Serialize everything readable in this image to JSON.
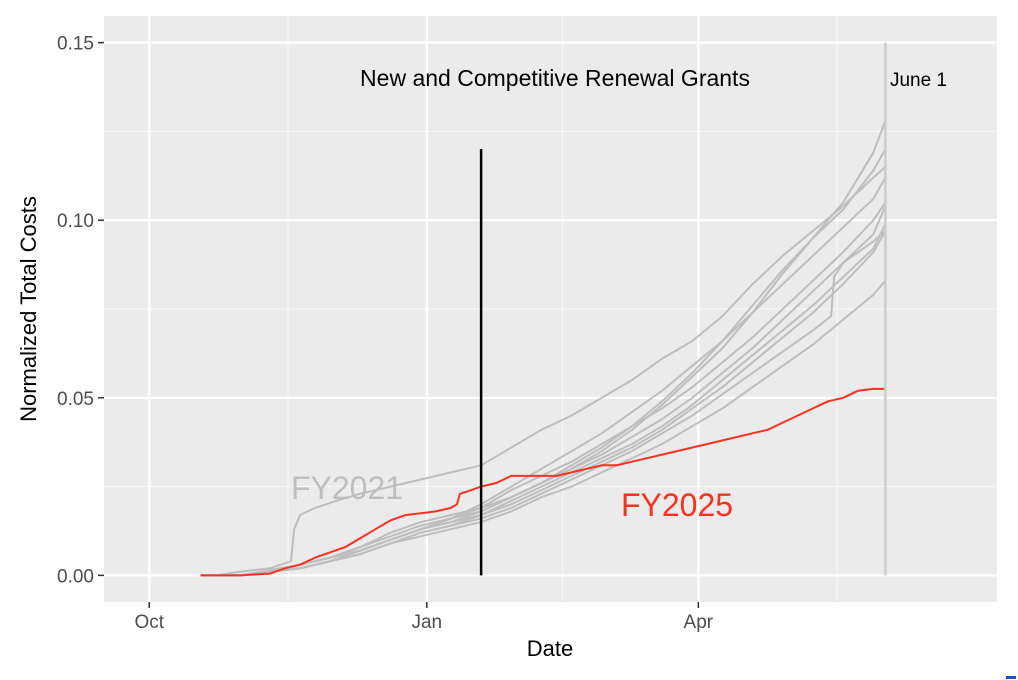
{
  "chart_data": {
    "type": "line",
    "title": "",
    "xlabel": "Date",
    "ylabel": "Normalized Total Costs",
    "x_unit": "day of fiscal year (Oct 1 = 0)",
    "xlim": [
      -15,
      281
    ],
    "ylim": [
      -0.0075,
      0.1575
    ],
    "x_ticks": [
      {
        "label": "Oct",
        "value": 0
      },
      {
        "label": "Jan",
        "value": 92
      },
      {
        "label": "Apr",
        "value": 182
      }
    ],
    "x_minor_ticks": [
      46,
      137,
      228
    ],
    "y_ticks": [
      {
        "label": "0.00",
        "value": 0.0
      },
      {
        "label": "0.05",
        "value": 0.05
      },
      {
        "label": "0.10",
        "value": 0.1
      },
      {
        "label": "0.15",
        "value": 0.15
      }
    ],
    "y_minor_ticks": [
      0.025,
      0.075,
      0.125
    ],
    "grid": true,
    "background": "#ebebeb",
    "annotations": {
      "main_text": "New and Competitive Renewal Grants",
      "june_text": "June 1",
      "june_line_x": 244,
      "cutoff_line_x": 110,
      "cutoff_line_y_top": 0.12,
      "fy2021_label": "FY2021",
      "fy2025_label": "FY2025"
    },
    "colors": {
      "history": "#bebebe",
      "current": "#f8321e",
      "cutoff": "#000000",
      "june_line": "#cccccc"
    },
    "series": [
      {
        "name": "FY2021",
        "color": "#bebebe",
        "x": [
          22,
          30,
          40,
          47,
          48,
          50,
          55,
          62,
          70,
          80,
          90,
          100,
          110,
          120,
          130,
          140,
          150,
          160,
          170,
          180,
          190,
          200,
          210,
          220,
          230,
          240,
          244
        ],
        "y": [
          0.0,
          0.001,
          0.002,
          0.004,
          0.013,
          0.017,
          0.019,
          0.021,
          0.023,
          0.025,
          0.027,
          0.029,
          0.031,
          0.036,
          0.041,
          0.045,
          0.05,
          0.055,
          0.061,
          0.066,
          0.073,
          0.082,
          0.09,
          0.097,
          0.104,
          0.112,
          0.115
        ]
      },
      {
        "name": "",
        "color": "#bebebe",
        "x": [
          17,
          30,
          40,
          50,
          60,
          70,
          80,
          90,
          100,
          110,
          120,
          130,
          140,
          150,
          160,
          170,
          180,
          190,
          200,
          210,
          220,
          230,
          240,
          244
        ],
        "y": [
          0.0,
          0.0,
          0.0015,
          0.003,
          0.005,
          0.008,
          0.012,
          0.015,
          0.017,
          0.019,
          0.022,
          0.026,
          0.03,
          0.035,
          0.041,
          0.048,
          0.056,
          0.064,
          0.074,
          0.085,
          0.095,
          0.105,
          0.119,
          0.128
        ]
      },
      {
        "name": "",
        "color": "#bebebe",
        "x": [
          17,
          30,
          40,
          50,
          60,
          70,
          80,
          90,
          100,
          110,
          120,
          130,
          140,
          150,
          160,
          170,
          180,
          190,
          200,
          210,
          220,
          230,
          240,
          244
        ],
        "y": [
          0.0,
          0.0,
          0.001,
          0.003,
          0.005,
          0.008,
          0.011,
          0.014,
          0.016,
          0.018,
          0.022,
          0.026,
          0.031,
          0.036,
          0.042,
          0.049,
          0.057,
          0.066,
          0.076,
          0.086,
          0.095,
          0.103,
          0.114,
          0.12
        ]
      },
      {
        "name": "",
        "color": "#bebebe",
        "x": [
          17,
          30,
          40,
          50,
          60,
          70,
          80,
          90,
          100,
          110,
          120,
          130,
          140,
          150,
          160,
          170,
          180,
          190,
          200,
          210,
          220,
          230,
          240,
          244
        ],
        "y": [
          0.0,
          0.0,
          0.001,
          0.003,
          0.005,
          0.007,
          0.01,
          0.013,
          0.016,
          0.02,
          0.025,
          0.03,
          0.035,
          0.04,
          0.046,
          0.052,
          0.059,
          0.066,
          0.074,
          0.082,
          0.09,
          0.098,
          0.106,
          0.112
        ]
      },
      {
        "name": "",
        "color": "#bebebe",
        "x": [
          17,
          30,
          40,
          50,
          60,
          70,
          80,
          90,
          100,
          110,
          120,
          130,
          140,
          150,
          160,
          170,
          180,
          190,
          200,
          210,
          220,
          230,
          240,
          244
        ],
        "y": [
          0.0,
          0.0,
          0.001,
          0.003,
          0.005,
          0.007,
          0.01,
          0.013,
          0.016,
          0.019,
          0.024,
          0.028,
          0.032,
          0.037,
          0.042,
          0.047,
          0.053,
          0.06,
          0.067,
          0.075,
          0.083,
          0.091,
          0.1,
          0.105
        ]
      },
      {
        "name": "",
        "color": "#bebebe",
        "x": [
          17,
          30,
          40,
          50,
          60,
          70,
          80,
          90,
          100,
          110,
          120,
          130,
          140,
          150,
          160,
          170,
          180,
          190,
          200,
          210,
          220,
          230,
          240,
          244
        ],
        "y": [
          0.0,
          0.0,
          0.001,
          0.002,
          0.004,
          0.007,
          0.01,
          0.013,
          0.015,
          0.018,
          0.022,
          0.026,
          0.03,
          0.034,
          0.039,
          0.044,
          0.05,
          0.057,
          0.064,
          0.072,
          0.08,
          0.088,
          0.096,
          0.104
        ]
      },
      {
        "name": "",
        "color": "#bebebe",
        "x": [
          17,
          30,
          40,
          50,
          60,
          70,
          80,
          90,
          100,
          110,
          120,
          130,
          140,
          150,
          160,
          170,
          180,
          190,
          200,
          210,
          220,
          230,
          240,
          244
        ],
        "y": [
          0.0,
          0.0,
          0.001,
          0.002,
          0.004,
          0.007,
          0.01,
          0.013,
          0.015,
          0.017,
          0.021,
          0.025,
          0.029,
          0.033,
          0.037,
          0.042,
          0.048,
          0.055,
          0.062,
          0.069,
          0.076,
          0.084,
          0.092,
          0.099
        ]
      },
      {
        "name": "",
        "color": "#bebebe",
        "x": [
          17,
          30,
          40,
          50,
          60,
          70,
          80,
          90,
          100,
          110,
          120,
          130,
          140,
          150,
          160,
          170,
          180,
          190,
          200,
          210,
          220,
          230,
          240,
          244
        ],
        "y": [
          0.0,
          0.0,
          0.001,
          0.002,
          0.004,
          0.006,
          0.009,
          0.012,
          0.014,
          0.017,
          0.02,
          0.024,
          0.028,
          0.032,
          0.036,
          0.041,
          0.047,
          0.053,
          0.06,
          0.067,
          0.074,
          0.082,
          0.091,
          0.097
        ]
      },
      {
        "name": "",
        "color": "#bebebe",
        "x": [
          17,
          30,
          40,
          50,
          60,
          70,
          80,
          90,
          100,
          110,
          120,
          130,
          140,
          150,
          160,
          170,
          180,
          190,
          200,
          210,
          220,
          226,
          227,
          230,
          240,
          244
        ],
        "y": [
          0.0,
          0.0,
          0.001,
          0.002,
          0.004,
          0.006,
          0.009,
          0.012,
          0.014,
          0.016,
          0.019,
          0.023,
          0.027,
          0.031,
          0.035,
          0.04,
          0.045,
          0.051,
          0.057,
          0.063,
          0.069,
          0.073,
          0.084,
          0.088,
          0.094,
          0.097
        ]
      },
      {
        "name": "",
        "color": "#bebebe",
        "x": [
          17,
          30,
          40,
          50,
          60,
          70,
          80,
          90,
          100,
          110,
          120,
          130,
          140,
          150,
          160,
          170,
          180,
          190,
          200,
          210,
          220,
          230,
          240,
          244
        ],
        "y": [
          0.0,
          0.0,
          0.001,
          0.002,
          0.004,
          0.006,
          0.009,
          0.011,
          0.013,
          0.015,
          0.018,
          0.022,
          0.025,
          0.029,
          0.033,
          0.037,
          0.042,
          0.047,
          0.053,
          0.059,
          0.065,
          0.072,
          0.079,
          0.083
        ]
      },
      {
        "name": "FY2025",
        "color": "#f8321e",
        "x": [
          17,
          30,
          40,
          45,
          50,
          55,
          60,
          65,
          70,
          75,
          80,
          85,
          90,
          95,
          100,
          102,
          103,
          105,
          110,
          115,
          120,
          125,
          130,
          135,
          140,
          145,
          150,
          155,
          160,
          165,
          170,
          175,
          180,
          185,
          190,
          195,
          200,
          205,
          210,
          215,
          220,
          225,
          230,
          235,
          240,
          244
        ],
        "y": [
          0.0,
          0.0,
          0.0005,
          0.002,
          0.003,
          0.005,
          0.0065,
          0.008,
          0.0105,
          0.013,
          0.0155,
          0.017,
          0.0175,
          0.018,
          0.019,
          0.02,
          0.023,
          0.0235,
          0.025,
          0.026,
          0.028,
          0.028,
          0.028,
          0.028,
          0.029,
          0.03,
          0.031,
          0.031,
          0.032,
          0.033,
          0.034,
          0.035,
          0.036,
          0.037,
          0.038,
          0.039,
          0.04,
          0.041,
          0.043,
          0.045,
          0.047,
          0.049,
          0.05,
          0.052,
          0.0525,
          0.0525
        ]
      }
    ]
  }
}
